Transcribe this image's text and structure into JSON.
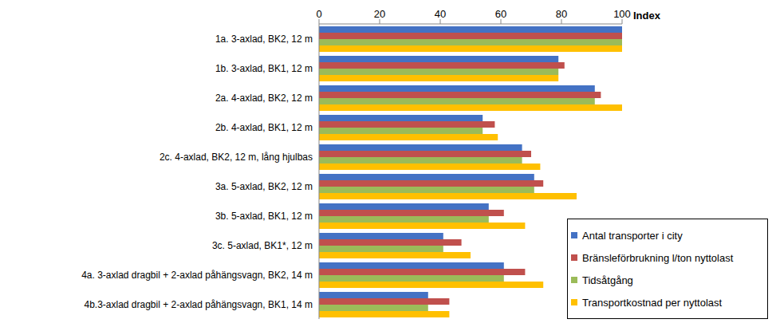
{
  "chart_data": {
    "type": "bar",
    "orientation": "horizontal",
    "x_label": "Index",
    "categories": [
      "1a. 3-axlad, BK2, 12 m",
      "1b. 3-axlad, BK1, 12 m",
      "2a. 4-axlad, BK2, 12 m",
      "2b. 4-axlad, BK1, 12 m",
      "2c. 4-axlad, BK2, 12 m, lång hjulbas",
      "3a. 5-axlad, BK2, 12 m",
      "3b. 5-axlad, BK1, 12 m",
      "3c. 5-axlad, BK1*, 12 m",
      "4a. 3-axlad dragbil + 2-axlad påhängsvagn, BK2, 14 m",
      "4b.3-axlad dragbil + 2-axlad påhängsvagn, BK1, 14 m"
    ],
    "series": [
      {
        "name": "Antal transporter i city",
        "color": "#4472c4",
        "values": [
          100,
          79,
          91,
          54,
          67,
          71,
          56,
          41,
          61,
          36
        ]
      },
      {
        "name": "Bränsleförbrukning l/ton nyttolast",
        "color": "#c0504d",
        "values": [
          100,
          81,
          93,
          58,
          70,
          74,
          61,
          47,
          68,
          43
        ]
      },
      {
        "name": "Tidsåtgång",
        "color": "#9bbb59",
        "values": [
          100,
          79,
          91,
          54,
          67,
          71,
          56,
          41,
          61,
          36
        ]
      },
      {
        "name": "Transportkostnad per nyttolast",
        "color": "#ffc000",
        "values": [
          100,
          79,
          100,
          59,
          73,
          85,
          68,
          50,
          74,
          43
        ]
      }
    ],
    "xlim": [
      0,
      100
    ],
    "xticks": [
      0,
      20,
      40,
      60,
      80,
      100
    ],
    "grid": false,
    "legend": "lower right"
  }
}
